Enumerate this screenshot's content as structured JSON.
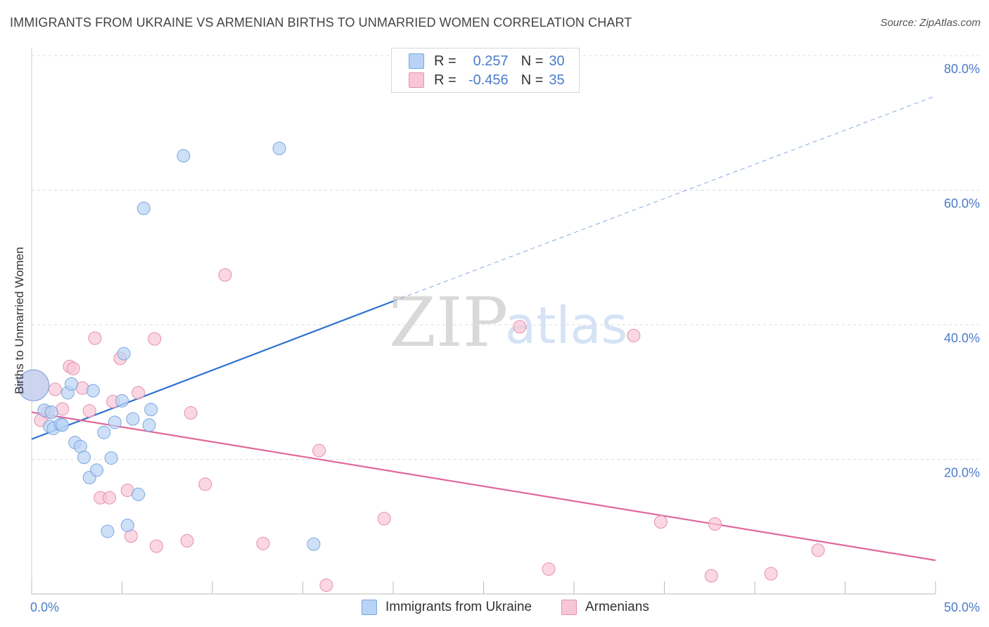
{
  "title": "IMMIGRANTS FROM UKRAINE VS ARMENIAN BIRTHS TO UNMARRIED WOMEN CORRELATION CHART",
  "source": "Source: ZipAtlas.com",
  "watermark": {
    "zip": "ZIP",
    "atlas": "atlas"
  },
  "colors": {
    "blue_fill": "#b8d3f5",
    "blue_stroke": "#7aa6e0",
    "blue_line": "#2f72cf",
    "pink_fill": "#f8c6d6",
    "pink_stroke": "#e58fae",
    "pink_line": "#e0679a",
    "tick_text": "#4a7cc9",
    "grid": "#dddddd"
  },
  "legend": {
    "rows": [
      {
        "r_label": "R =",
        "r_value": "0.257",
        "n_label": "N =",
        "n_value": "30"
      },
      {
        "r_label": "R =",
        "r_value": "-0.456",
        "n_label": "N =",
        "n_value": "35"
      }
    ]
  },
  "bottom_legend": {
    "series1": "Immigrants from Ukraine",
    "series2": "Armenians"
  },
  "chart_data": {
    "type": "scatter",
    "title": "IMMIGRANTS FROM UKRAINE VS ARMENIAN BIRTHS TO UNMARRIED WOMEN CORRELATION CHART",
    "xlabel": "",
    "ylabel": "Births to Unmarried Women",
    "xlim": [
      0,
      50
    ],
    "ylim": [
      0,
      80
    ],
    "x_tick_labels": [
      "0.0%",
      "50.0%"
    ],
    "y_ticks": [
      20,
      40,
      60,
      80
    ],
    "y_tick_labels": [
      "20.0%",
      "40.0%",
      "60.0%",
      "80.0%"
    ],
    "series": [
      {
        "name": "Immigrants from Ukraine",
        "R": 0.257,
        "N": 30,
        "trend": {
          "x0": 0,
          "y0": 23.0,
          "x1": 20,
          "y1": 43.5,
          "x_dash_end": 50,
          "y_dash_end": 74.0
        },
        "points": [
          {
            "x": 0.1,
            "y": 31.0,
            "big": true
          },
          {
            "x": 0.7,
            "y": 27.3
          },
          {
            "x": 1.0,
            "y": 24.9
          },
          {
            "x": 1.2,
            "y": 24.6
          },
          {
            "x": 1.6,
            "y": 25.2
          },
          {
            "x": 1.7,
            "y": 25.1
          },
          {
            "x": 2.0,
            "y": 29.9
          },
          {
            "x": 2.2,
            "y": 31.2
          },
          {
            "x": 2.4,
            "y": 22.5
          },
          {
            "x": 2.7,
            "y": 21.9
          },
          {
            "x": 2.9,
            "y": 20.3
          },
          {
            "x": 3.2,
            "y": 17.3
          },
          {
            "x": 3.4,
            "y": 30.2
          },
          {
            "x": 3.6,
            "y": 18.4
          },
          {
            "x": 4.0,
            "y": 24.0
          },
          {
            "x": 4.2,
            "y": 9.3
          },
          {
            "x": 4.4,
            "y": 20.2
          },
          {
            "x": 4.6,
            "y": 25.5
          },
          {
            "x": 5.0,
            "y": 28.7
          },
          {
            "x": 5.1,
            "y": 35.7
          },
          {
            "x": 5.3,
            "y": 10.2
          },
          {
            "x": 5.6,
            "y": 26.0
          },
          {
            "x": 5.9,
            "y": 14.8
          },
          {
            "x": 6.2,
            "y": 57.3
          },
          {
            "x": 6.5,
            "y": 25.1
          },
          {
            "x": 6.6,
            "y": 27.4
          },
          {
            "x": 8.4,
            "y": 65.1
          },
          {
            "x": 13.7,
            "y": 66.2
          },
          {
            "x": 15.6,
            "y": 7.4
          },
          {
            "x": 1.1,
            "y": 27.0
          }
        ]
      },
      {
        "name": "Armenians",
        "R": -0.456,
        "N": 35,
        "trend": {
          "x0": 0,
          "y0": 27.0,
          "x1": 50,
          "y1": 5.0
        },
        "points": [
          {
            "x": 0.1,
            "y": 31.0,
            "big": true
          },
          {
            "x": 0.5,
            "y": 25.8
          },
          {
            "x": 0.9,
            "y": 27.0
          },
          {
            "x": 1.3,
            "y": 30.4
          },
          {
            "x": 1.7,
            "y": 27.5
          },
          {
            "x": 2.1,
            "y": 33.8
          },
          {
            "x": 2.3,
            "y": 33.5
          },
          {
            "x": 2.8,
            "y": 30.6
          },
          {
            "x": 3.2,
            "y": 27.2
          },
          {
            "x": 3.5,
            "y": 38.0
          },
          {
            "x": 3.8,
            "y": 14.3
          },
          {
            "x": 4.3,
            "y": 14.3
          },
          {
            "x": 4.5,
            "y": 28.6
          },
          {
            "x": 4.9,
            "y": 35.0
          },
          {
            "x": 5.3,
            "y": 15.4
          },
          {
            "x": 5.5,
            "y": 8.6
          },
          {
            "x": 5.9,
            "y": 29.9
          },
          {
            "x": 6.8,
            "y": 37.9
          },
          {
            "x": 6.9,
            "y": 7.1
          },
          {
            "x": 8.6,
            "y": 7.9
          },
          {
            "x": 8.8,
            "y": 26.9
          },
          {
            "x": 9.6,
            "y": 16.3
          },
          {
            "x": 10.7,
            "y": 47.4
          },
          {
            "x": 12.8,
            "y": 7.5
          },
          {
            "x": 15.9,
            "y": 21.3
          },
          {
            "x": 16.3,
            "y": 1.3
          },
          {
            "x": 19.5,
            "y": 11.2
          },
          {
            "x": 27.0,
            "y": 39.7
          },
          {
            "x": 28.6,
            "y": 3.7
          },
          {
            "x": 33.3,
            "y": 38.4
          },
          {
            "x": 34.8,
            "y": 10.7
          },
          {
            "x": 37.6,
            "y": 2.7
          },
          {
            "x": 37.8,
            "y": 10.4
          },
          {
            "x": 40.9,
            "y": 3.0
          },
          {
            "x": 43.5,
            "y": 6.5
          }
        ]
      }
    ]
  }
}
